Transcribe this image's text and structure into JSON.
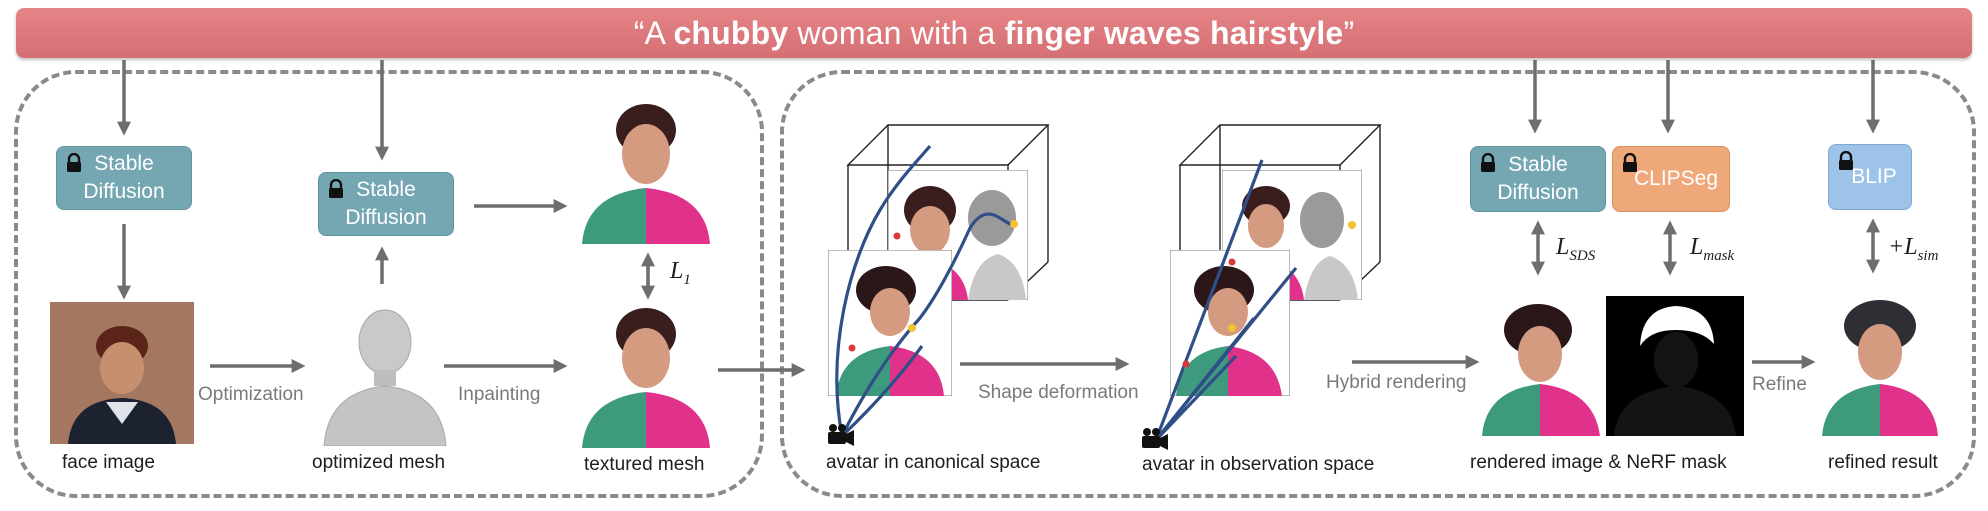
{
  "prompt": {
    "open_quote": "“A ",
    "w1": "chubby",
    "w2": " woman with a ",
    "w3": "finger waves hairstyle",
    "close_quote": "”"
  },
  "models": {
    "sd_label_line1": "Stable",
    "sd_label_line2": "Diffusion",
    "clipseg_label": "CLIPSeg",
    "blip_label": "BLIP"
  },
  "captions": {
    "face_image": "face image",
    "optimized_mesh": "optimized mesh",
    "textured_mesh": "textured mesh",
    "canonical": "avatar in canonical space",
    "observation": "avatar in observation space",
    "rendered": "rendered image & NeRF mask",
    "refined": "refined result"
  },
  "steps": {
    "optimization": "Optimization",
    "inpainting": "Inpainting",
    "shape_deformation": "Shape deformation",
    "hybrid_rendering": "Hybrid rendering",
    "refine": "Refine"
  },
  "losses": {
    "l1_main": "L",
    "l1_sub": "1",
    "sds_main": "L",
    "sds_sub": "SDS",
    "mask_main": "L",
    "mask_sub": "mask",
    "sim_prefix": "+",
    "sim_main": "L",
    "sim_sub": "sim"
  },
  "colors": {
    "banner": "#d9767a",
    "stable_diffusion": "#74a7b2",
    "clipseg": "#efa87a",
    "blip": "#9dc3e8",
    "arrow": "#6e6e6e",
    "camera_path": "#2f4f86"
  },
  "icons": {
    "lock": "lock-icon",
    "camera": "camera-icon"
  }
}
